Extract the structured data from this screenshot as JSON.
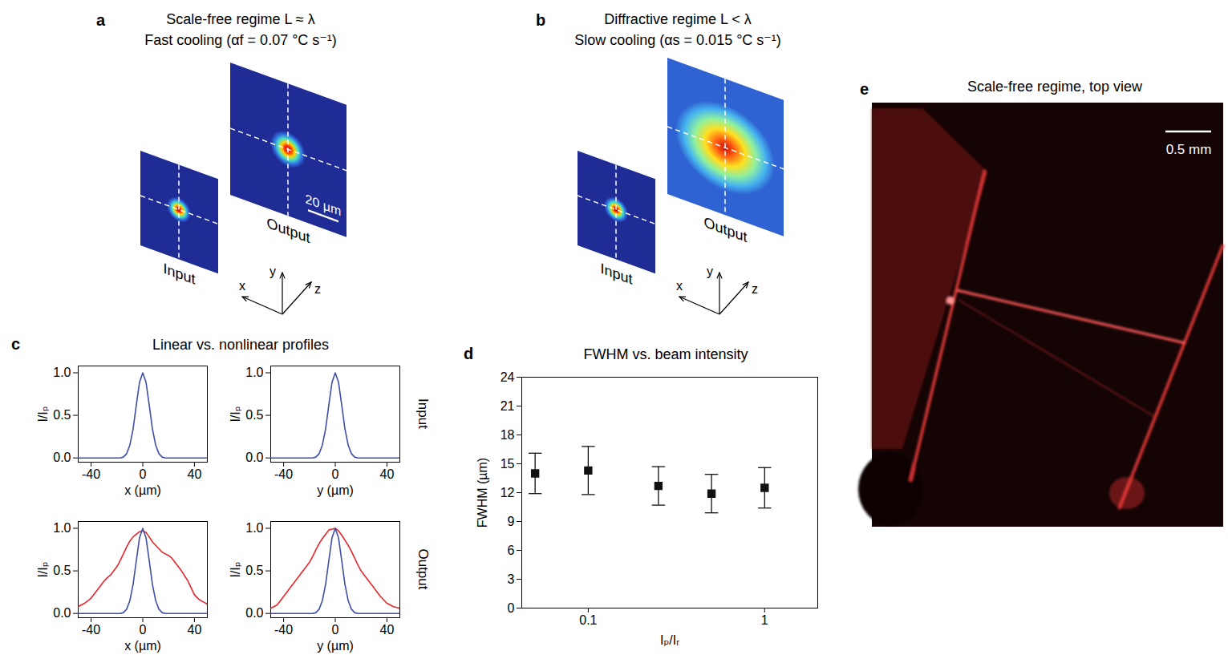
{
  "panels": [
    {
      "letter": "a",
      "title": "Scale-free regime L ≈ λ",
      "subtitle": "Fast cooling (αf = 0.07 °C s⁻¹)",
      "labels": [
        "Input",
        "Output"
      ],
      "scale_bar": "20 µm",
      "axes": [
        "x",
        "y",
        "z"
      ]
    },
    {
      "letter": "b",
      "title": "Diffractive regime L < λ",
      "subtitle": "Slow cooling (αs = 0.015 °C s⁻¹)",
      "labels": [
        "Input",
        "Output"
      ],
      "axes": [
        "x",
        "y",
        "z"
      ]
    },
    {
      "letter": "e",
      "title": "Scale-free regime, top view",
      "scale_bar": "0.5 mm"
    }
  ],
  "chart_data": [
    {
      "letter": "c",
      "type": "line",
      "title": "Linear vs. nonlinear profiles",
      "row_labels": [
        "Input",
        "Output"
      ],
      "x": [
        -50,
        -47.5,
        -45,
        -42.5,
        -40,
        -37.5,
        -35,
        -32.5,
        -30,
        -27.5,
        -25,
        -22.5,
        -20,
        -17.5,
        -15,
        -12.5,
        -10,
        -7.5,
        -5,
        -2.5,
        0,
        2.5,
        5,
        7.5,
        10,
        12.5,
        15,
        17.5,
        20,
        22.5,
        25,
        27.5,
        30,
        32.5,
        35,
        37.5,
        40,
        42.5,
        45,
        47.5,
        50
      ],
      "xlim": [
        -50,
        50
      ],
      "xticks": [
        -40,
        0,
        40
      ],
      "ylim": [
        -0.05,
        1.08
      ],
      "yticks": [
        {
          "value": 0,
          "label": "0.0"
        },
        {
          "value": 0.5,
          "label": "0.5"
        },
        {
          "value": 1,
          "label": "1.0"
        }
      ],
      "subplots": [
        {
          "xlabel": "x (µm)",
          "ylabel": "I/Iₚ",
          "series": [
            {
              "color": "#3f4fa8",
              "values": [
                0,
                0,
                0,
                0,
                0,
                0,
                0,
                0,
                0,
                0,
                0,
                0,
                0,
                0,
                0.01,
                0.05,
                0.15,
                0.34,
                0.62,
                0.89,
                1,
                0.89,
                0.62,
                0.34,
                0.15,
                0.05,
                0.01,
                0,
                0,
                0,
                0,
                0,
                0,
                0,
                0,
                0,
                0,
                0,
                0,
                0,
                0
              ]
            }
          ]
        },
        {
          "xlabel": "y (µm)",
          "ylabel": "I/Iₚ",
          "series": [
            {
              "color": "#3f4fa8",
              "values": [
                0,
                0,
                0,
                0,
                0,
                0,
                0,
                0,
                0,
                0,
                0,
                0,
                0,
                0,
                0.01,
                0.05,
                0.15,
                0.34,
                0.62,
                0.89,
                1,
                0.89,
                0.62,
                0.34,
                0.15,
                0.05,
                0.01,
                0,
                0,
                0,
                0,
                0,
                0,
                0,
                0,
                0,
                0,
                0,
                0,
                0,
                0
              ]
            }
          ]
        },
        {
          "xlabel": "x (µm)",
          "ylabel": "I/Iₚ",
          "series": [
            {
              "color": "#e8262b",
              "values": [
                0.08,
                0.1,
                0.12,
                0.15,
                0.18,
                0.23,
                0.28,
                0.33,
                0.38,
                0.42,
                0.45,
                0.5,
                0.55,
                0.62,
                0.7,
                0.78,
                0.85,
                0.9,
                0.93,
                0.96,
                0.97,
                0.95,
                0.9,
                0.84,
                0.8,
                0.76,
                0.72,
                0.7,
                0.68,
                0.65,
                0.6,
                0.55,
                0.5,
                0.44,
                0.38,
                0.3,
                0.22,
                0.18,
                0.15,
                0.13,
                0.11
              ]
            },
            {
              "color": "#3f4fa8",
              "values": [
                0,
                0,
                0,
                0,
                0,
                0,
                0,
                0,
                0,
                0,
                0,
                0,
                0,
                0,
                0.01,
                0.05,
                0.15,
                0.34,
                0.62,
                0.89,
                1,
                0.89,
                0.62,
                0.34,
                0.15,
                0.05,
                0.01,
                0,
                0,
                0,
                0,
                0,
                0,
                0,
                0,
                0,
                0,
                0,
                0,
                0,
                0
              ]
            }
          ]
        },
        {
          "xlabel": "y (µm)",
          "ylabel": "I/Iₚ",
          "series": [
            {
              "color": "#e8262b",
              "values": [
                0.06,
                0.08,
                0.1,
                0.15,
                0.2,
                0.25,
                0.3,
                0.35,
                0.4,
                0.45,
                0.5,
                0.55,
                0.6,
                0.67,
                0.75,
                0.82,
                0.88,
                0.93,
                0.98,
                0.99,
                1,
                0.97,
                0.92,
                0.86,
                0.8,
                0.73,
                0.65,
                0.57,
                0.5,
                0.45,
                0.4,
                0.35,
                0.3,
                0.25,
                0.2,
                0.16,
                0.12,
                0.1,
                0.08,
                0.07,
                0.06
              ]
            },
            {
              "color": "#3f4fa8",
              "values": [
                0,
                0,
                0,
                0,
                0,
                0,
                0,
                0,
                0,
                0,
                0,
                0,
                0,
                0,
                0.01,
                0.05,
                0.15,
                0.34,
                0.62,
                0.89,
                1,
                0.89,
                0.62,
                0.34,
                0.15,
                0.05,
                0.01,
                0,
                0,
                0,
                0,
                0,
                0,
                0,
                0,
                0,
                0,
                0,
                0,
                0,
                0
              ]
            }
          ]
        }
      ]
    },
    {
      "letter": "d",
      "type": "scatter",
      "title": "FWHM vs. beam intensity",
      "xlabel": "Iₚ/Iᵣ",
      "ylabel": "FWHM (µm)",
      "log": "x",
      "marker": "square",
      "color": "#111111",
      "x": [
        0.05,
        0.1,
        0.25,
        0.5,
        1
      ],
      "values": [
        14,
        14.3,
        12.7,
        11.9,
        12.5
      ],
      "yerr": [
        2.1,
        2.5,
        2,
        2,
        2.1
      ],
      "xlim": [
        0.042,
        2
      ],
      "xticks": [
        0.1,
        1
      ],
      "ylim": [
        0,
        24
      ],
      "yticks": [
        0,
        3,
        6,
        9,
        12,
        15,
        18,
        21,
        24
      ]
    }
  ]
}
